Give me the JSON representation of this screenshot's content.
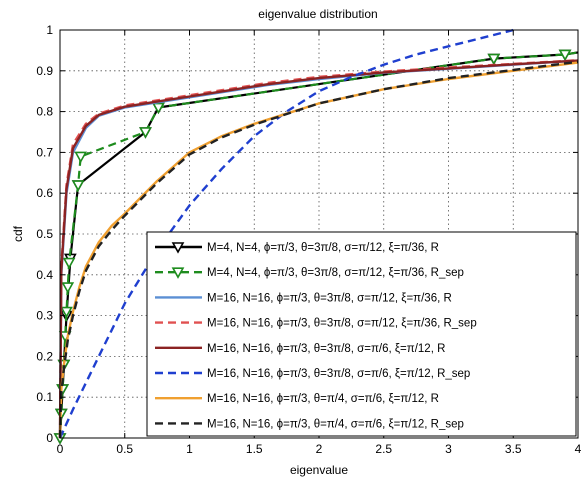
{
  "chart_data": {
    "type": "line",
    "title": "eigenvalue distribution",
    "xlabel": "eigenvalue",
    "ylabel": "cdf",
    "xlim": [
      0,
      4
    ],
    "ylim": [
      0,
      1
    ],
    "xticks": [
      "0",
      "0.5",
      "1",
      "1.5",
      "2",
      "2.5",
      "3",
      "3.5",
      "4"
    ],
    "yticks": [
      "0",
      "0.1",
      "0.2",
      "0.3",
      "0.4",
      "0.5",
      "0.6",
      "0.7",
      "0.8",
      "0.9",
      "1"
    ],
    "grid": true,
    "legend_position": "bottom-right",
    "series": [
      {
        "name": "M=4, N=4, ϕ=π/3, θ=3π/8, σ=π/12, ξ=π/36, R",
        "color": "#000000",
        "style": "solid",
        "marker": "triangle-down",
        "x": [
          0.0,
          0.01,
          0.02,
          0.03,
          0.05,
          0.08,
          0.14,
          0.66,
          0.76,
          3.35,
          3.9,
          4.0
        ],
        "y": [
          0.0,
          0.06,
          0.12,
          0.18,
          0.3,
          0.44,
          0.62,
          0.75,
          0.81,
          0.93,
          0.94,
          0.945
        ]
      },
      {
        "name": "M=4, N=4, ϕ=π/3, θ=3π/8, σ=π/12, ξ=π/36, R_sep",
        "color": "#1e8c1e",
        "style": "dashed",
        "marker": "triangle-down",
        "x": [
          0.0,
          0.01,
          0.02,
          0.03,
          0.04,
          0.05,
          0.06,
          0.07,
          0.14,
          0.16,
          0.66,
          0.76,
          3.35,
          3.9,
          4.0
        ],
        "y": [
          0.0,
          0.06,
          0.12,
          0.18,
          0.25,
          0.31,
          0.37,
          0.43,
          0.62,
          0.69,
          0.75,
          0.81,
          0.93,
          0.94,
          0.945
        ]
      },
      {
        "name": "M=16, N=16, ϕ=π/3, θ=3π/8, σ=π/12, ξ=π/36, R",
        "color": "#5b8fd4",
        "style": "solid",
        "marker": "none",
        "x": [
          0.0,
          0.01,
          0.05,
          0.1,
          0.2,
          0.3,
          0.5,
          0.7,
          1.0,
          1.3,
          1.6,
          2.0,
          2.5,
          3.0,
          3.5,
          4.0
        ],
        "y": [
          0.0,
          0.4,
          0.6,
          0.7,
          0.76,
          0.79,
          0.81,
          0.82,
          0.835,
          0.85,
          0.865,
          0.88,
          0.895,
          0.905,
          0.915,
          0.925
        ]
      },
      {
        "name": "M=16, N=16, ϕ=π/3, θ=3π/8, σ=π/12, ξ=π/36, R_sep",
        "color": "#e05050",
        "style": "dashed",
        "marker": "none",
        "x": [
          0.0,
          0.01,
          0.05,
          0.1,
          0.2,
          0.3,
          0.5,
          0.7,
          1.0,
          1.3,
          1.6,
          2.0,
          2.5,
          3.0,
          3.5,
          4.0
        ],
        "y": [
          0.0,
          0.42,
          0.62,
          0.72,
          0.77,
          0.795,
          0.815,
          0.825,
          0.84,
          0.855,
          0.87,
          0.885,
          0.898,
          0.908,
          0.917,
          0.926
        ]
      },
      {
        "name": "M=16, N=16, ϕ=π/3, θ=3π/8, σ=π/6, ξ=π/12, R",
        "color": "#8b2323",
        "style": "solid",
        "marker": "none",
        "x": [
          0.0,
          0.01,
          0.05,
          0.1,
          0.2,
          0.3,
          0.5,
          0.7,
          1.0,
          1.3,
          1.6,
          2.0,
          2.5,
          3.0,
          3.5,
          4.0
        ],
        "y": [
          0.0,
          0.41,
          0.61,
          0.71,
          0.765,
          0.792,
          0.812,
          0.822,
          0.837,
          0.852,
          0.867,
          0.882,
          0.896,
          0.906,
          0.916,
          0.925
        ]
      },
      {
        "name": "M=16, N=16, ϕ=π/3, θ=3π/8, σ=π/6, ξ=π/12, R_sep",
        "color": "#1f3fcf",
        "style": "dashed",
        "marker": "none",
        "x": [
          0.0,
          0.1,
          0.3,
          0.5,
          0.75,
          1.0,
          1.25,
          1.5,
          1.75,
          2.0,
          2.25,
          2.5,
          2.75,
          3.0,
          3.25,
          3.5
        ],
        "y": [
          0.0,
          0.07,
          0.2,
          0.33,
          0.46,
          0.57,
          0.66,
          0.74,
          0.8,
          0.85,
          0.885,
          0.915,
          0.94,
          0.96,
          0.98,
          1.0
        ]
      },
      {
        "name": "M=16, N=16, ϕ=π/3, θ=π/4, σ=π/6, ξ=π/12, R",
        "color": "#f0a030",
        "style": "solid",
        "marker": "none",
        "x": [
          0.0,
          0.01,
          0.03,
          0.06,
          0.1,
          0.15,
          0.2,
          0.3,
          0.4,
          0.5,
          0.75,
          1.0,
          1.25,
          1.5,
          2.0,
          2.5,
          3.0,
          3.5,
          4.0
        ],
        "y": [
          0.0,
          0.12,
          0.18,
          0.25,
          0.31,
          0.37,
          0.42,
          0.48,
          0.52,
          0.55,
          0.63,
          0.7,
          0.74,
          0.77,
          0.82,
          0.855,
          0.88,
          0.9,
          0.92
        ]
      },
      {
        "name": "M=16, N=16, ϕ=π/3, θ=π/4, σ=π/6, ξ=π/12, R_sep",
        "color": "#222222",
        "style": "dashed",
        "marker": "none",
        "x": [
          0.0,
          0.01,
          0.03,
          0.06,
          0.1,
          0.15,
          0.2,
          0.3,
          0.4,
          0.5,
          0.75,
          1.0,
          1.25,
          1.5,
          2.0,
          2.5,
          3.0,
          3.5,
          4.0
        ],
        "y": [
          0.0,
          0.11,
          0.17,
          0.24,
          0.3,
          0.36,
          0.41,
          0.47,
          0.51,
          0.545,
          0.625,
          0.695,
          0.737,
          0.768,
          0.82,
          0.855,
          0.882,
          0.902,
          0.922
        ]
      }
    ]
  }
}
